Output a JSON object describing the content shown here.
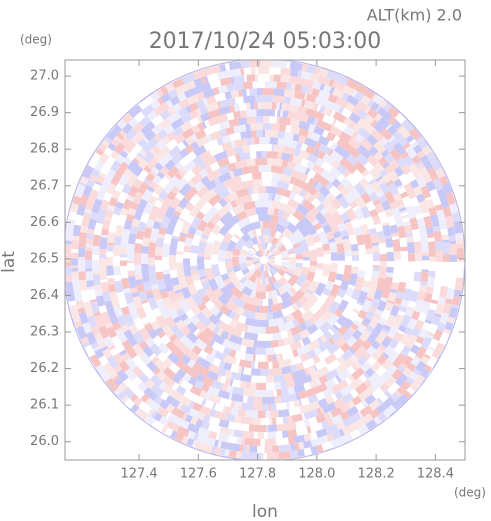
{
  "chart_data": {
    "type": "radar-ppi",
    "title": "2017/10/24 05:03:00",
    "subtitle": "ALT(km) 2.0",
    "x_label": "lon",
    "y_label": "lat",
    "x_unit": "(deg)",
    "y_unit": "(deg)",
    "xlim": [
      127.15,
      128.5
    ],
    "xticks": [
      {
        "value": 127.4,
        "label": "127.4"
      },
      {
        "value": 127.6,
        "label": "127.6"
      },
      {
        "value": 127.8,
        "label": "127.8"
      },
      {
        "value": 128.0,
        "label": "128.0"
      },
      {
        "value": 128.2,
        "label": "128.2"
      },
      {
        "value": 128.4,
        "label": "128.4"
      }
    ],
    "ylim": [
      25.95,
      27.044
    ],
    "yticks": [
      {
        "value": 26.0,
        "label": "26.0"
      },
      {
        "value": 26.1,
        "label": "26.1"
      },
      {
        "value": 26.2,
        "label": "26.2"
      },
      {
        "value": 26.3,
        "label": "26.3"
      },
      {
        "value": 26.4,
        "label": "26.4"
      },
      {
        "value": 26.5,
        "label": "26.5"
      },
      {
        "value": 26.6,
        "label": "26.6"
      },
      {
        "value": 26.7,
        "label": "26.7"
      },
      {
        "value": 26.8,
        "label": "26.8"
      },
      {
        "value": 26.9,
        "label": "26.9"
      },
      {
        "value": 27.0,
        "label": "27.0"
      }
    ]
  }
}
